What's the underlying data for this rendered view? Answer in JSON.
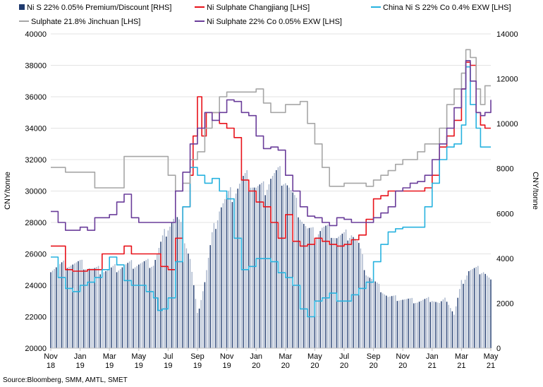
{
  "chart_data": {
    "type": "line",
    "title": "",
    "source": "Source:Bloomberg, SMM, AMTL, SMET",
    "ylabel_left": "CNY/tonne",
    "ylabel_right": "CNY/tonne",
    "ylim_left": [
      20000,
      40000
    ],
    "ylim_right": [
      0,
      14000
    ],
    "yticks_left": [
      20000,
      22000,
      24000,
      26000,
      28000,
      30000,
      32000,
      34000,
      36000,
      38000,
      40000
    ],
    "yticks_right": [
      0,
      2000,
      4000,
      6000,
      8000,
      10000,
      12000,
      14000
    ],
    "x_ticks": [
      {
        "m": 0,
        "top": "Nov",
        "bottom": "18"
      },
      {
        "m": 2,
        "top": "Jan",
        "bottom": "19"
      },
      {
        "m": 4,
        "top": "Mar",
        "bottom": "19"
      },
      {
        "m": 6,
        "top": "May",
        "bottom": "19"
      },
      {
        "m": 8,
        "top": "Jul",
        "bottom": "19"
      },
      {
        "m": 10,
        "top": "Sep",
        "bottom": "19"
      },
      {
        "m": 12,
        "top": "Nov",
        "bottom": "19"
      },
      {
        "m": 14,
        "top": "Jan",
        "bottom": "20"
      },
      {
        "m": 16,
        "top": "Mar",
        "bottom": "20"
      },
      {
        "m": 18,
        "top": "May",
        "bottom": "20"
      },
      {
        "m": 20,
        "top": "Jul",
        "bottom": "20"
      },
      {
        "m": 22,
        "top": "Sep",
        "bottom": "20"
      },
      {
        "m": 24,
        "top": "Nov",
        "bottom": "20"
      },
      {
        "m": 26,
        "top": "Jan",
        "bottom": "21"
      },
      {
        "m": 28,
        "top": "Mar",
        "bottom": "21"
      },
      {
        "m": 30,
        "top": "May",
        "bottom": "21"
      }
    ],
    "x_range_months": [
      0,
      30
    ],
    "legend": [
      {
        "name": "Ni S 22% 0.05% Premium/Discount [RHS]",
        "color": "#1f3a6e",
        "kind": "bar"
      },
      {
        "name": "Ni Sulphate Changjiang [LHS]",
        "color": "#e8121a",
        "kind": "line"
      },
      {
        "name": "China Ni S 22% Co 0.4% EXW [LHS]",
        "color": "#27b2df",
        "kind": "line"
      },
      {
        "name": "Sulphate 21.8% Jinchuan [LHS]",
        "color": "#a6a6a6",
        "kind": "line"
      },
      {
        "name": "Ni Sulphate 22% Co 0.05% EXW [LHS]",
        "color": "#6a3d9a",
        "kind": "line"
      }
    ],
    "bars": {
      "name": "Ni S 22% 0.05% Premium/Discount [RHS]",
      "axis": "right",
      "x": [
        0,
        1,
        2,
        3,
        4,
        5,
        6,
        7,
        8,
        8.5,
        9,
        9.5,
        10,
        10.5,
        11,
        11.5,
        12,
        12.5,
        13,
        13.5,
        14,
        14.5,
        15,
        15.5,
        16,
        16.5,
        17,
        17.5,
        18,
        18.5,
        19,
        19.5,
        20,
        20.5,
        21,
        21.5,
        22,
        23,
        24,
        25,
        26,
        26.5,
        27,
        27.5,
        28,
        28.5,
        29,
        29.5,
        30
      ],
      "values": [
        3600,
        3800,
        3800,
        3500,
        3500,
        3700,
        3800,
        3800,
        5500,
        5900,
        5200,
        4000,
        1500,
        3000,
        5000,
        6300,
        6700,
        7000,
        7500,
        7600,
        7200,
        7100,
        7700,
        7800,
        7600,
        6800,
        6000,
        5300,
        5100,
        5400,
        5300,
        5000,
        5000,
        5200,
        4600,
        3400,
        3000,
        2300,
        2200,
        2100,
        2200,
        2000,
        2200,
        1500,
        2900,
        3500,
        3500,
        3500,
        3000
      ]
    },
    "series": [
      {
        "name": "Ni Sulphate Changjiang [LHS]",
        "color": "#e8121a",
        "axis": "left",
        "x": [
          0,
          0.5,
          1.0,
          1.5,
          2.0,
          2.5,
          3.0,
          3.5,
          4.0,
          4.5,
          5.0,
          5.5,
          6.0,
          6.5,
          7.0,
          7.5,
          8.0,
          8.5,
          9.0,
          9.5,
          9.7,
          10.0,
          10.3,
          10.6,
          11.0,
          11.5,
          12.0,
          12.5,
          13.0,
          13.5,
          14.0,
          14.5,
          15.0,
          15.5,
          16.0,
          16.5,
          17.0,
          17.5,
          18.0,
          18.5,
          19.0,
          19.5,
          20.0,
          20.5,
          21.0,
          21.5,
          22.0,
          22.5,
          23.0,
          23.5,
          24.0,
          24.5,
          25.0,
          25.5,
          26.0,
          26.5,
          27.0,
          27.5,
          28.0,
          28.3,
          28.6,
          29.0,
          29.3,
          29.6,
          30.0
        ],
        "values": [
          26500,
          26500,
          25000,
          24900,
          24900,
          25000,
          25000,
          26000,
          26000,
          26000,
          26500,
          26000,
          26000,
          26000,
          26000,
          25200,
          25000,
          27000,
          29000,
          31000,
          33500,
          36000,
          33500,
          35000,
          35000,
          34300,
          34000,
          33400,
          30700,
          30000,
          29300,
          29000,
          28000,
          27000,
          28500,
          26800,
          26500,
          26600,
          27000,
          26800,
          26600,
          26500,
          26600,
          26900,
          27200,
          28200,
          29500,
          29700,
          30000,
          30000,
          30000,
          30000,
          30000,
          30200,
          31000,
          32800,
          33500,
          34500,
          36500,
          38200,
          38000,
          35000,
          34200,
          34000,
          34000
        ]
      },
      {
        "name": "China Ni S 22% Co 0.4% EXW [LHS]",
        "color": "#27b2df",
        "axis": "left",
        "x": [
          0,
          0.5,
          1.0,
          1.5,
          2.0,
          2.5,
          3.0,
          3.5,
          4.0,
          4.5,
          5.0,
          5.5,
          6.0,
          6.5,
          7.0,
          7.3,
          7.6,
          8.0,
          8.5,
          9.0,
          9.5,
          10.0,
          10.5,
          11.0,
          11.5,
          12.0,
          12.5,
          13.0,
          13.5,
          14.0,
          14.5,
          15.0,
          15.5,
          16.0,
          16.5,
          17.0,
          17.5,
          18.0,
          18.5,
          19.0,
          19.5,
          20.0,
          20.5,
          21.0,
          21.5,
          22.0,
          22.5,
          23.0,
          23.5,
          24.0,
          24.5,
          25.0,
          25.5,
          26.0,
          26.5,
          27.0,
          27.5,
          28.0,
          28.3,
          28.6,
          29.0,
          29.3,
          29.6,
          30.0
        ],
        "values": [
          25800,
          24500,
          23800,
          23600,
          24000,
          24200,
          24500,
          25000,
          25800,
          25300,
          24300,
          24000,
          24000,
          23600,
          23200,
          22400,
          22500,
          23200,
          25500,
          29000,
          31500,
          31000,
          30500,
          30800,
          30000,
          29500,
          27000,
          25000,
          25200,
          25700,
          25700,
          25500,
          24800,
          24500,
          24000,
          22500,
          22000,
          23000,
          23200,
          23500,
          23000,
          23000,
          23400,
          23800,
          24200,
          25500,
          26600,
          27400,
          27600,
          27700,
          27700,
          27700,
          29000,
          30500,
          32000,
          32800,
          33000,
          34200,
          37900,
          35500,
          34000,
          32800,
          32800,
          32800
        ]
      },
      {
        "name": "Sulphate 21.8% Jinchuan [LHS]",
        "color": "#a6a6a6",
        "axis": "left",
        "x": [
          0,
          0.3,
          1.0,
          2.0,
          2.5,
          3.0,
          4.0,
          5.0,
          6.0,
          7.0,
          8.0,
          8.5,
          9.0,
          9.5,
          10.0,
          10.5,
          11.0,
          11.5,
          12.0,
          13.0,
          14.0,
          14.5,
          15.0,
          16.0,
          17.0,
          17.5,
          18.0,
          18.5,
          19.0,
          20.0,
          21.0,
          21.5,
          22.0,
          22.5,
          23.0,
          23.5,
          24.0,
          25.0,
          25.5,
          26.0,
          26.5,
          27.0,
          27.5,
          28.0,
          28.3,
          28.6,
          29.0,
          29.3,
          29.6,
          30.0
        ],
        "values": [
          31500,
          31500,
          31200,
          31200,
          31200,
          30200,
          30200,
          32200,
          32200,
          32200,
          31000,
          30000,
          30500,
          32000,
          32500,
          34000,
          35000,
          36000,
          36300,
          36300,
          36500,
          35600,
          35000,
          35500,
          35700,
          34300,
          33000,
          31500,
          30300,
          30500,
          30500,
          30300,
          30700,
          31000,
          31300,
          31700,
          32000,
          32500,
          33000,
          33000,
          34000,
          35500,
          36500,
          37500,
          39000,
          38500,
          36500,
          35500,
          36700,
          36700
        ]
      },
      {
        "name": "Ni Sulphate 22% Co 0.05% EXW [LHS]",
        "color": "#6a3d9a",
        "axis": "left",
        "x": [
          0,
          0.5,
          1.0,
          1.5,
          2.0,
          2.5,
          3.0,
          3.5,
          4.0,
          4.5,
          5.0,
          5.5,
          6.0,
          6.5,
          7.0,
          7.5,
          8.0,
          8.5,
          9.0,
          9.5,
          10.0,
          10.5,
          11.0,
          11.5,
          12.0,
          12.5,
          13.0,
          13.5,
          14.0,
          14.5,
          15.0,
          15.5,
          16.0,
          16.5,
          17.0,
          17.5,
          18.0,
          18.5,
          19.0,
          19.5,
          20.0,
          20.5,
          21.0,
          21.5,
          22.0,
          22.5,
          23.0,
          23.5,
          24.0,
          24.5,
          25.0,
          25.5,
          26.0,
          26.5,
          27.0,
          27.5,
          28.0,
          28.3,
          28.6,
          29.0,
          29.3,
          29.6,
          30.0
        ],
        "values": [
          28700,
          28000,
          27500,
          27500,
          27700,
          27500,
          28300,
          28300,
          28500,
          29300,
          29800,
          28300,
          28000,
          28000,
          28000,
          28000,
          28000,
          30000,
          31200,
          33000,
          34000,
          35000,
          34500,
          35000,
          35800,
          35700,
          35000,
          34800,
          33500,
          32700,
          32800,
          32600,
          31000,
          30000,
          29000,
          28400,
          28300,
          28000,
          27800,
          28300,
          28200,
          28000,
          28000,
          28000,
          28300,
          28600,
          29000,
          30000,
          30200,
          30500,
          30600,
          31000,
          32000,
          33000,
          34000,
          35300,
          36500,
          38300,
          37000,
          35000,
          34800,
          35000,
          35800
        ]
      }
    ]
  }
}
